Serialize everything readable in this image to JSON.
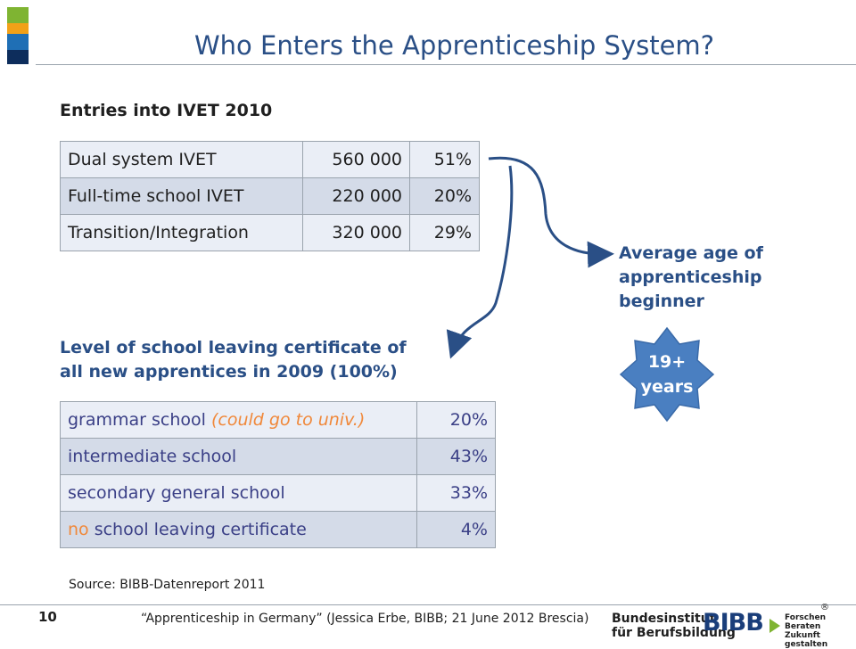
{
  "slide": {
    "title": "Who Enters the Apprenticeship System?",
    "colors": {
      "title": "#2a4f86",
      "accent_orange": "#f0883a",
      "table_shade": "#d4dbe8",
      "badge": "#4a7fc1"
    }
  },
  "entries": {
    "heading": "Entries into IVET 2010",
    "rows": [
      {
        "label": "Dual system IVET",
        "value": "560 000",
        "pct": "51%"
      },
      {
        "label": "Full-time school IVET",
        "value": "220 000",
        "pct": "20%"
      },
      {
        "label": "Transition/Integration",
        "value": "320 000",
        "pct": "29%"
      }
    ]
  },
  "age": {
    "heading": "Average age of apprenticeship beginner",
    "badge_line1": "19+",
    "badge_line2": "years"
  },
  "certificate": {
    "heading_line1": "Level of school leaving certificate of",
    "heading_line2": "all new apprentices in 2009  (100%)",
    "rows": [
      {
        "label": "grammar school ",
        "note": "(could go to univ.)",
        "pct": "20%"
      },
      {
        "label": "intermediate school",
        "pct": "43%"
      },
      {
        "label": "secondary general school",
        "pct": "33%"
      },
      {
        "prefix": "no",
        "label": " school leaving certificate",
        "pct": "4%"
      }
    ]
  },
  "source": "Source: BIBB-Datenreport 2011",
  "footer": {
    "page_number": "10",
    "text": "“Apprenticeship in Germany” (Jessica Erbe, BIBB; 21 June 2012 Brescia)",
    "registered": "®"
  },
  "logo": {
    "name_line1": "Bundesinstitut",
    "name_line2": "für Berufsbildung",
    "wordmark": "BIBB",
    "tagline_1": "Forschen",
    "tagline_2": "Beraten",
    "tagline_3": "Zukunft gestalten"
  }
}
